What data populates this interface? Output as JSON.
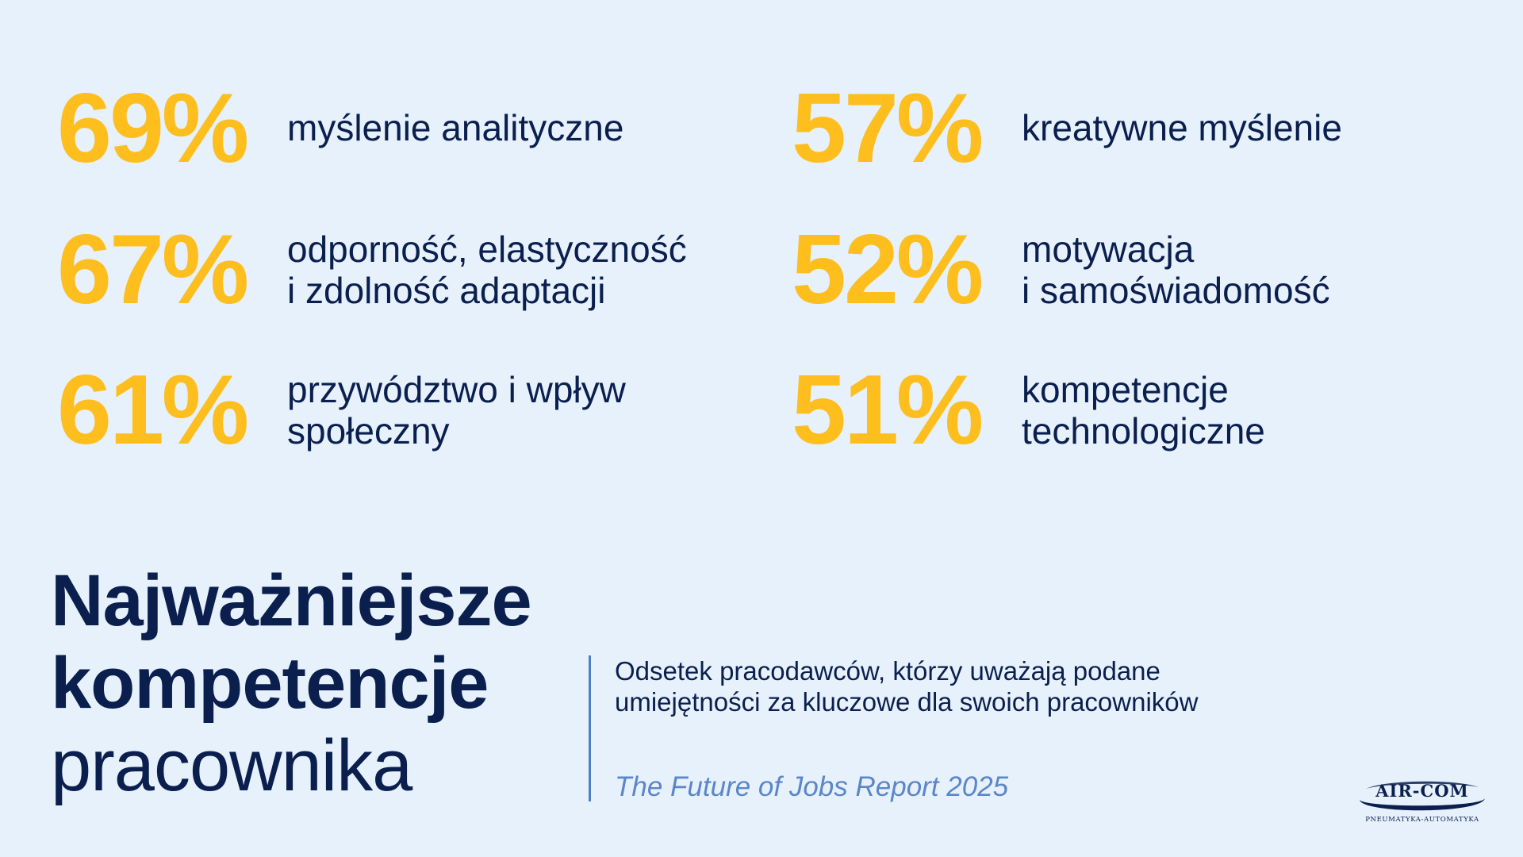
{
  "stats": [
    {
      "percent": "69%",
      "label": "myślenie analityczne"
    },
    {
      "percent": "67%",
      "label": "odporność, elastyczność\ni zdolność adaptacji"
    },
    {
      "percent": "61%",
      "label": "przywództwo i wpływ\nspołeczny"
    },
    {
      "percent": "57%",
      "label": "kreatywne myślenie"
    },
    {
      "percent": "52%",
      "label": "motywacja\ni samoświadomość"
    },
    {
      "percent": "51%",
      "label": "kompetencje\ntechnologiczne"
    }
  ],
  "title": {
    "line1": "Najważniejsze",
    "line2": "kompetencje",
    "line3": "pracownika"
  },
  "description": "Odsetek pracodawców, którzy uważają podane umiejętności za kluczowe dla swoich pracowników",
  "source": "The Future of Jobs Report 2025",
  "logo": {
    "name": "AIR-COM",
    "tagline": "PNEUMATYKA-AUTOMATYKA"
  },
  "colors": {
    "background": "#E6F1FC",
    "accent": "#FDBE1E",
    "text": "#0B1F4E",
    "source": "#5B86C9"
  }
}
